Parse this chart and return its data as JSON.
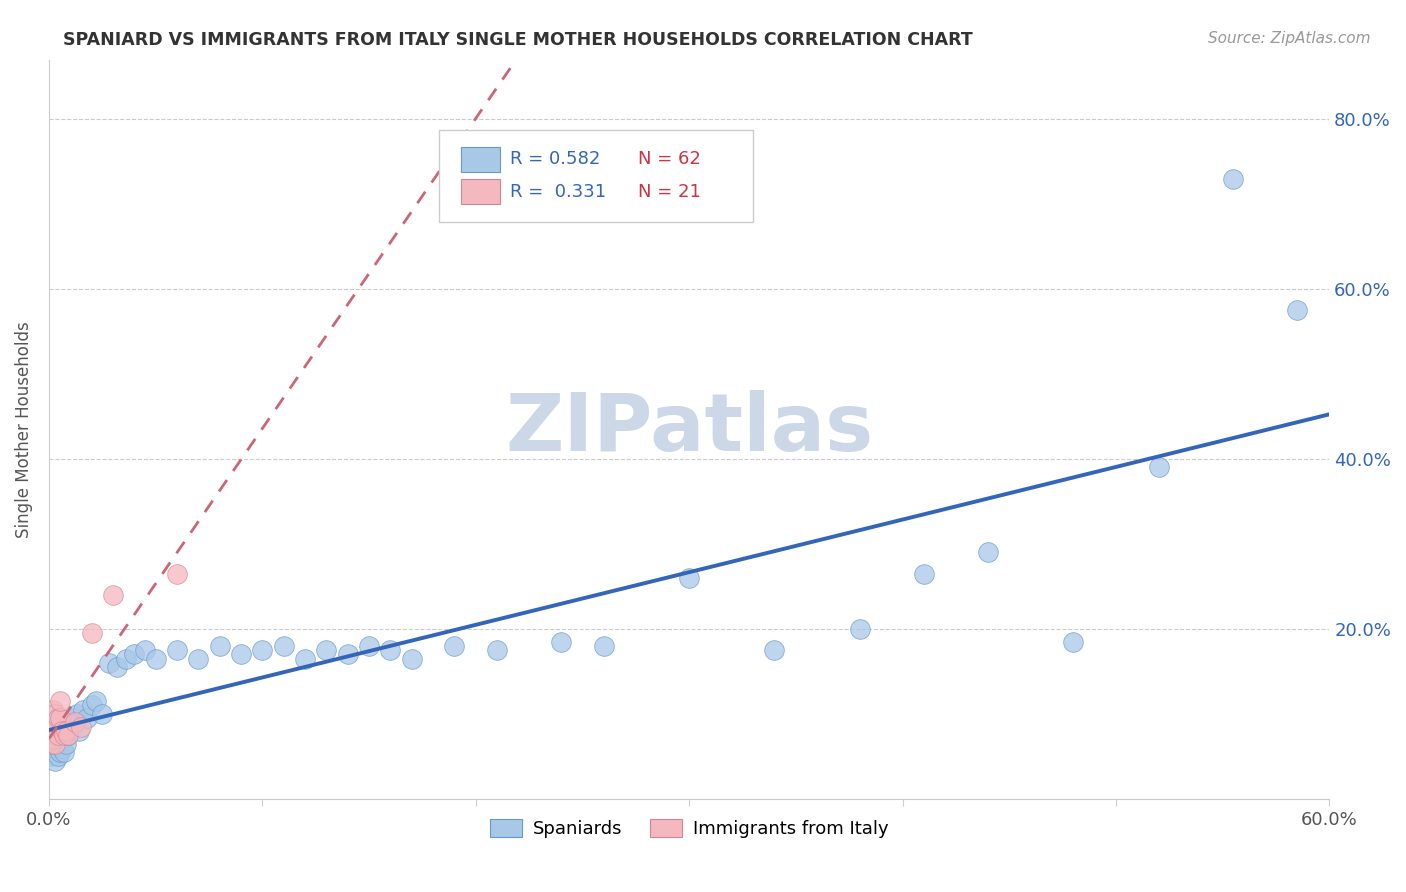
{
  "title": "SPANIARD VS IMMIGRANTS FROM ITALY SINGLE MOTHER HOUSEHOLDS CORRELATION CHART",
  "source": "Source: ZipAtlas.com",
  "ylabel": "Single Mother Households",
  "xlim": [
    0.0,
    0.6
  ],
  "ylim": [
    0.0,
    0.87
  ],
  "blue_R": 0.582,
  "blue_N": 62,
  "pink_R": 0.331,
  "pink_N": 21,
  "blue_color": "#a8c8e8",
  "pink_color": "#f5b8be",
  "blue_edge_color": "#6699cc",
  "pink_edge_color": "#cc8899",
  "blue_line_color": "#3366bb",
  "pink_line_color": "#cc6677",
  "watermark_color": "#ccd8e8",
  "grid_color": "#cccccc",
  "axis_color": "#999999",
  "title_color": "#333333",
  "source_color": "#999999",
  "yaxis_label_color": "#3366bb",
  "legend_R_color": "#3366bb",
  "legend_N_color": "#cc3344",
  "blue_x": [
    0.001,
    0.001,
    0.002,
    0.002,
    0.002,
    0.003,
    0.003,
    0.003,
    0.003,
    0.004,
    0.004,
    0.004,
    0.005,
    0.005,
    0.005,
    0.006,
    0.006,
    0.007,
    0.007,
    0.008,
    0.009,
    0.01,
    0.011,
    0.012,
    0.013,
    0.014,
    0.016,
    0.018,
    0.02,
    0.022,
    0.025,
    0.028,
    0.032,
    0.036,
    0.04,
    0.045,
    0.05,
    0.06,
    0.07,
    0.08,
    0.09,
    0.1,
    0.11,
    0.12,
    0.13,
    0.14,
    0.15,
    0.16,
    0.17,
    0.19,
    0.21,
    0.24,
    0.26,
    0.3,
    0.34,
    0.38,
    0.41,
    0.44,
    0.48,
    0.52,
    0.555,
    0.585
  ],
  "blue_y": [
    0.05,
    0.07,
    0.055,
    0.065,
    0.08,
    0.045,
    0.06,
    0.075,
    0.085,
    0.05,
    0.068,
    0.078,
    0.055,
    0.065,
    0.08,
    0.06,
    0.07,
    0.055,
    0.075,
    0.065,
    0.075,
    0.09,
    0.085,
    0.095,
    0.1,
    0.08,
    0.105,
    0.095,
    0.11,
    0.115,
    0.1,
    0.16,
    0.155,
    0.165,
    0.17,
    0.175,
    0.165,
    0.175,
    0.165,
    0.18,
    0.17,
    0.175,
    0.18,
    0.165,
    0.175,
    0.17,
    0.18,
    0.175,
    0.165,
    0.18,
    0.175,
    0.185,
    0.18,
    0.26,
    0.175,
    0.2,
    0.265,
    0.29,
    0.185,
    0.39,
    0.73,
    0.575
  ],
  "pink_x": [
    0.001,
    0.001,
    0.002,
    0.002,
    0.002,
    0.003,
    0.003,
    0.003,
    0.004,
    0.004,
    0.005,
    0.005,
    0.006,
    0.007,
    0.008,
    0.009,
    0.012,
    0.015,
    0.02,
    0.03,
    0.06
  ],
  "pink_y": [
    0.065,
    0.08,
    0.07,
    0.09,
    0.105,
    0.065,
    0.085,
    0.1,
    0.075,
    0.095,
    0.095,
    0.115,
    0.08,
    0.075,
    0.08,
    0.075,
    0.09,
    0.085,
    0.195,
    0.24,
    0.265
  ]
}
